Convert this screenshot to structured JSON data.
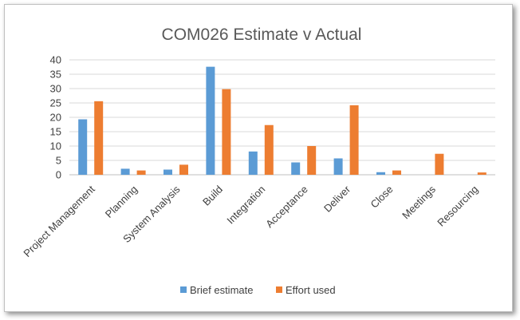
{
  "chart_data": {
    "type": "bar",
    "title": "COM026 Estimate v Actual",
    "xlabel": "",
    "ylabel": "",
    "ylim": [
      0,
      40
    ],
    "yticks": [
      0,
      5,
      10,
      15,
      20,
      25,
      30,
      35,
      40
    ],
    "grid": true,
    "legend_position": "bottom",
    "categories": [
      "Project Management",
      "Planning",
      "System Analysis",
      "Build",
      "Integration",
      "Acceptance",
      "Deliver",
      "Close",
      "Meetings",
      "Resourcing"
    ],
    "series": [
      {
        "name": "Brief estimate",
        "color": "#5B9BD5",
        "values": [
          19.3,
          2.1,
          1.8,
          37.6,
          8.1,
          4.3,
          5.7,
          0.9,
          0,
          0
        ]
      },
      {
        "name": "Effort used",
        "color": "#ED7D31",
        "values": [
          25.6,
          1.5,
          3.5,
          29.8,
          17.3,
          10.0,
          24.2,
          1.5,
          7.3,
          0.8
        ]
      }
    ]
  }
}
